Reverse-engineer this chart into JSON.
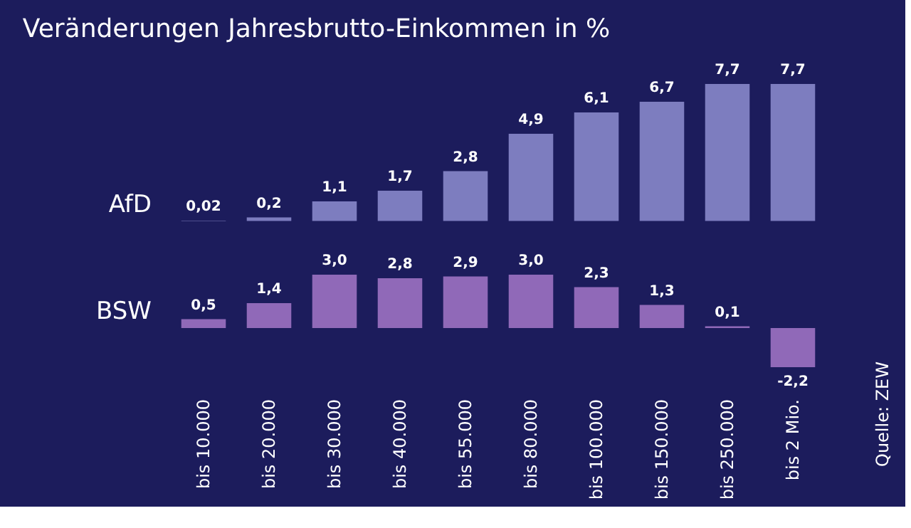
{
  "chart_data": [
    {
      "type": "bar",
      "title": "Veränderungen Jahresbrutto-Einkommen in %",
      "ylabel": "AfD",
      "categories": [
        "bis 10.000",
        "bis 20.000",
        "bis 30.000",
        "bis 40.000",
        "bis 55.000",
        "bis 80.000",
        "bis 100.000",
        "bis 150.000",
        "bis 250.000",
        "bis 2 Mio."
      ],
      "values": [
        0.02,
        0.2,
        1.1,
        1.7,
        2.8,
        4.9,
        6.1,
        6.7,
        7.7,
        7.7
      ],
      "value_labels": [
        "0,02",
        "0,2",
        "1,1",
        "1,7",
        "2,8",
        "4,9",
        "6,1",
        "6,7",
        "7,7",
        "7,7"
      ],
      "color": "#8585c8",
      "tick_labels": false
    },
    {
      "type": "bar",
      "ylabel": "BSW",
      "categories": [
        "bis 10.000",
        "bis 20.000",
        "bis 30.000",
        "bis 40.000",
        "bis 55.000",
        "bis 80.000",
        "bis 100.000",
        "bis 150.000",
        "bis 250.000",
        "bis 2 Mio."
      ],
      "values": [
        0.5,
        1.4,
        3.0,
        2.8,
        2.9,
        3.0,
        2.3,
        1.3,
        0.1,
        -2.2
      ],
      "value_labels": [
        "0,5",
        "1,4",
        "3,0",
        "2,8",
        "2,9",
        "3,0",
        "2,3",
        "1,3",
        "0,1",
        "-2,2"
      ],
      "color": "#9a70c0",
      "tick_labels": "x",
      "annotations": [
        "Quelle: ZEW"
      ]
    }
  ]
}
